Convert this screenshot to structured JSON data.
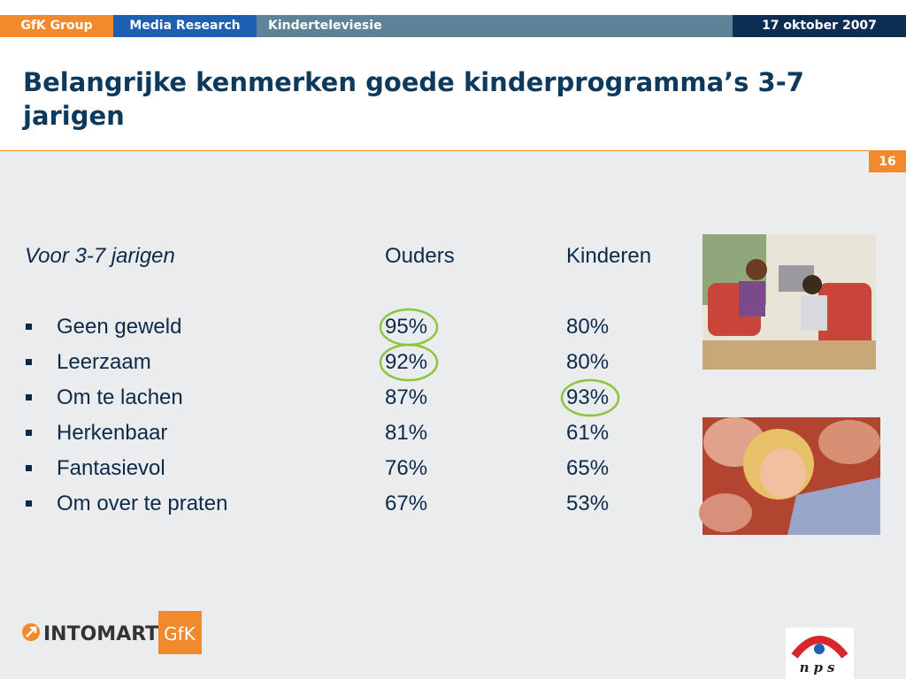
{
  "header": {
    "tabs": [
      "GfK Group",
      "Media Research",
      "Kinderteleviesie",
      "17 oktober 2007"
    ]
  },
  "title": "Belangrijke kenmerken goede kinderprogramma’s 3-7 jarigen",
  "page_number": "16",
  "table": {
    "columns": [
      "Voor 3-7 jarigen",
      "Ouders",
      "Kinderen"
    ],
    "rows": [
      [
        "Geen geweld",
        "95%",
        "80%"
      ],
      [
        "Leerzaam",
        "92%",
        "80%"
      ],
      [
        "Om te lachen",
        "87%",
        "93%"
      ],
      [
        "Herkenbaar",
        "81%",
        "61%"
      ],
      [
        "Fantasievol",
        "76%",
        "65%"
      ],
      [
        "Om over te praten",
        "67%",
        "53%"
      ]
    ],
    "circled": [
      [
        0,
        1
      ],
      [
        1,
        1
      ],
      [
        2,
        2
      ]
    ]
  },
  "logos": {
    "intomart": "INTOMART",
    "gfk": "GfK",
    "nps": "nps"
  }
}
